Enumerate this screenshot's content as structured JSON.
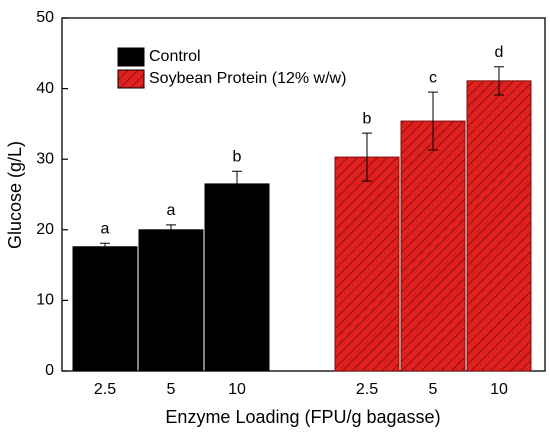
{
  "chart_data": {
    "type": "bar",
    "x_label": "Enzyme Loading (FPU/g bagasse)",
    "y_label": "Glucose (g/L)",
    "categories": [
      "2.5",
      "5",
      "10",
      "2.5",
      "5",
      "10"
    ],
    "series": [
      {
        "name": "Control",
        "color": "#000000",
        "hatch": false,
        "values": [
          17.6,
          20.0,
          26.5,
          null,
          null,
          null
        ],
        "errors": [
          0.5,
          0.7,
          1.8,
          null,
          null,
          null
        ],
        "annotations": [
          "a",
          "a",
          "b",
          null,
          null,
          null
        ]
      },
      {
        "name": "Soybean Protein (12% w/w)",
        "color": "#e0201e",
        "hatch": true,
        "values": [
          null,
          null,
          null,
          30.3,
          35.4,
          41.1
        ],
        "errors": [
          null,
          null,
          null,
          3.4,
          4.1,
          2.0
        ],
        "annotations": [
          null,
          null,
          null,
          "b",
          "c",
          "d"
        ]
      }
    ],
    "ylim": [
      0,
      50
    ],
    "yticks": [
      0,
      10,
      20,
      30,
      40,
      50
    ],
    "grid": false,
    "legend": "upper-left"
  }
}
